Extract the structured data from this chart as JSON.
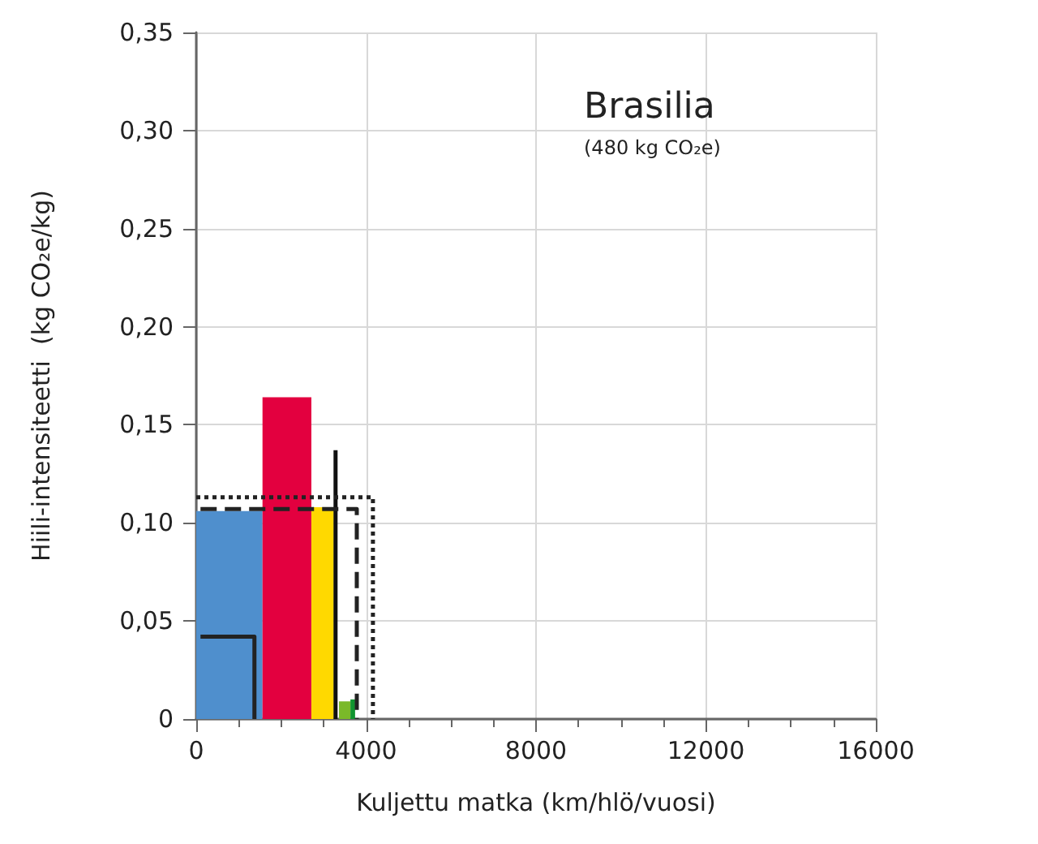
{
  "chart_data": {
    "type": "histogram",
    "title": "Brasilia",
    "subtitle": "(480 kg CO₂e)",
    "xlabel": "Kuljettu matka (km/hlö/vuosi)",
    "ylabel": "Hiili-intensiteetti  (kg CO₂e/kg)",
    "bins": [
      0,
      1560,
      2710,
      3240,
      3360,
      3630,
      3740
    ],
    "values": [
      0.106,
      0.164,
      0.108,
      null,
      0.009,
      0.01
    ],
    "colors": [
      "#4f8fcd",
      "#e3003f",
      "#ffd900",
      null,
      "#7ab929",
      "#10942f"
    ],
    "series": [
      {
        "type": "line",
        "color": "#222222",
        "line_style": "solid",
        "x": [
          100,
          1370,
          1370
        ],
        "values": [
          0.042,
          0.042,
          0
        ]
      },
      {
        "type": "line",
        "color": "#111111",
        "line_style": "solid",
        "x": [
          3280,
          3280
        ],
        "values": [
          0.137,
          0
        ]
      },
      {
        "type": "line",
        "color": "#222222",
        "line_style": "dashed",
        "x": [
          100,
          3780,
          3780
        ],
        "values": [
          0.107,
          0.107,
          0
        ]
      },
      {
        "type": "line",
        "color": "#222222",
        "line_style": "dotted",
        "x": [
          0,
          4160,
          4160
        ],
        "values": [
          0.113,
          0.113,
          0
        ]
      }
    ],
    "marker": "none",
    "xlim": [
      0,
      16000
    ],
    "xticks": [
      0,
      4000,
      8000,
      12000,
      16000
    ],
    "ylim": [
      0,
      0.35
    ],
    "yticks": [
      {
        "value": 0,
        "label": "0"
      },
      {
        "value": 0.05,
        "label": "0,05"
      },
      {
        "value": 0.1,
        "label": "0,10"
      },
      {
        "value": 0.15,
        "label": "0,15"
      },
      {
        "value": 0.2,
        "label": "0,20"
      },
      {
        "value": 0.25,
        "label": "0,25"
      },
      {
        "value": 0.3,
        "label": "0,30"
      },
      {
        "value": 0.35,
        "label": "0,35"
      }
    ],
    "grid": true
  }
}
